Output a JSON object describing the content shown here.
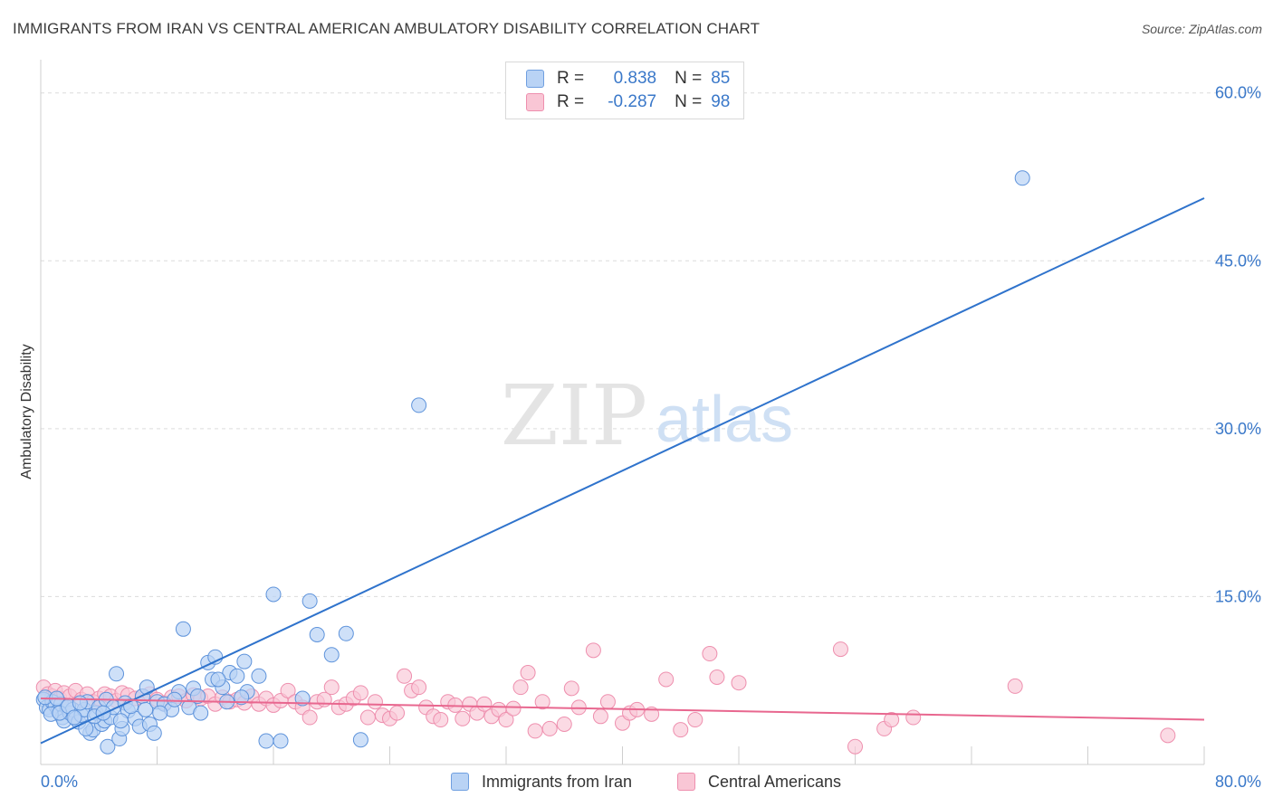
{
  "title": "IMMIGRANTS FROM IRAN VS CENTRAL AMERICAN AMBULATORY DISABILITY CORRELATION CHART",
  "source": "Source: ZipAtlas.com",
  "watermark": {
    "zip": "ZIP",
    "atlas": "atlas"
  },
  "legend_top": [
    {
      "r_label": "R =",
      "r_value": "0.838",
      "n_label": "N =",
      "n_value": "85"
    },
    {
      "r_label": "R =",
      "r_value": "-0.287",
      "n_label": "N =",
      "n_value": "98"
    }
  ],
  "colors": {
    "blue": "#3a78c9",
    "blue_fill": "#b9d3f5",
    "pink": "#e8678f",
    "pink_fill": "#f9c6d5",
    "grid": "#dcdcdc",
    "tick_text": "#3a78c9"
  },
  "chart_data": {
    "type": "scatter",
    "title": "IMMIGRANTS FROM IRAN VS CENTRAL AMERICAN AMBULATORY DISABILITY CORRELATION CHART",
    "xlabel": "",
    "ylabel": "Ambulatory Disability",
    "xlim": [
      0,
      80
    ],
    "ylim": [
      0,
      62
    ],
    "x_tick_labels": [
      "0.0%",
      "80.0%"
    ],
    "y_ticks": [
      15,
      30,
      45,
      60
    ],
    "y_tick_labels": [
      "15.0%",
      "30.0%",
      "45.0%",
      "60.0%"
    ],
    "grid": true,
    "legend_position": "bottom",
    "series": [
      {
        "name": "Immigrants from Iran",
        "color": "#3a78c9",
        "trend": [
          [
            0,
            1.9
          ],
          [
            80,
            50.6
          ]
        ],
        "points": [
          [
            0.2,
            5.8
          ],
          [
            0.4,
            5.1
          ],
          [
            0.6,
            4.9
          ],
          [
            0.8,
            5.6
          ],
          [
            1.0,
            5.3
          ],
          [
            1.2,
            4.8
          ],
          [
            1.4,
            5.4
          ],
          [
            1.5,
            4.2
          ],
          [
            1.6,
            3.9
          ],
          [
            1.8,
            5.1
          ],
          [
            2.0,
            4.6
          ],
          [
            2.2,
            4.9
          ],
          [
            2.4,
            4.1
          ],
          [
            2.6,
            3.8
          ],
          [
            2.8,
            4.4
          ],
          [
            3.0,
            4.9
          ],
          [
            3.2,
            5.6
          ],
          [
            3.4,
            2.8
          ],
          [
            3.6,
            3.1
          ],
          [
            3.8,
            4.6
          ],
          [
            4.0,
            5.1
          ],
          [
            4.2,
            3.6
          ],
          [
            4.4,
            3.9
          ],
          [
            4.5,
            5.8
          ],
          [
            4.6,
            1.6
          ],
          [
            4.8,
            4.2
          ],
          [
            5.0,
            5.1
          ],
          [
            5.2,
            8.1
          ],
          [
            5.4,
            2.3
          ],
          [
            5.6,
            3.2
          ],
          [
            5.8,
            5.5
          ],
          [
            6.0,
            4.8
          ],
          [
            6.5,
            4.1
          ],
          [
            6.8,
            3.4
          ],
          [
            7.0,
            6.1
          ],
          [
            7.2,
            4.9
          ],
          [
            7.5,
            3.6
          ],
          [
            7.8,
            2.8
          ],
          [
            8.0,
            5.6
          ],
          [
            8.5,
            5.4
          ],
          [
            9.0,
            4.9
          ],
          [
            9.5,
            6.5
          ],
          [
            9.8,
            12.1
          ],
          [
            10.2,
            5.1
          ],
          [
            10.5,
            6.8
          ],
          [
            11.0,
            4.6
          ],
          [
            11.5,
            9.1
          ],
          [
            11.8,
            7.6
          ],
          [
            12.0,
            9.6
          ],
          [
            12.5,
            6.9
          ],
          [
            12.8,
            5.6
          ],
          [
            13.0,
            8.2
          ],
          [
            13.5,
            7.9
          ],
          [
            14.0,
            9.2
          ],
          [
            14.2,
            6.5
          ],
          [
            15.0,
            7.9
          ],
          [
            15.5,
            2.1
          ],
          [
            16.0,
            15.2
          ],
          [
            16.5,
            2.1
          ],
          [
            18.0,
            5.9
          ],
          [
            18.5,
            14.6
          ],
          [
            19.0,
            11.6
          ],
          [
            20.0,
            9.8
          ],
          [
            21.0,
            11.7
          ],
          [
            22.0,
            2.2
          ],
          [
            26.0,
            32.1
          ],
          [
            67.5,
            52.4
          ],
          [
            0.3,
            6.0
          ],
          [
            0.7,
            4.5
          ],
          [
            1.1,
            5.9
          ],
          [
            1.3,
            4.6
          ],
          [
            1.9,
            5.2
          ],
          [
            2.3,
            4.2
          ],
          [
            2.7,
            5.5
          ],
          [
            3.1,
            3.2
          ],
          [
            3.7,
            4.3
          ],
          [
            4.3,
            4.6
          ],
          [
            5.5,
            3.9
          ],
          [
            6.2,
            5.2
          ],
          [
            7.3,
            6.9
          ],
          [
            8.2,
            4.6
          ],
          [
            9.2,
            5.8
          ],
          [
            10.8,
            6.1
          ],
          [
            12.2,
            7.6
          ],
          [
            13.8,
            6.0
          ]
        ]
      },
      {
        "name": "Central Americans",
        "color": "#e8678f",
        "trend": [
          [
            0,
            5.9
          ],
          [
            80,
            4.0
          ]
        ],
        "points": [
          [
            0.2,
            6.9
          ],
          [
            0.5,
            6.3
          ],
          [
            0.8,
            6.1
          ],
          [
            1.0,
            6.6
          ],
          [
            1.3,
            5.9
          ],
          [
            1.6,
            6.4
          ],
          [
            2.0,
            6.1
          ],
          [
            2.4,
            6.6
          ],
          [
            2.8,
            5.8
          ],
          [
            3.2,
            6.3
          ],
          [
            3.6,
            5.6
          ],
          [
            4.0,
            5.9
          ],
          [
            4.4,
            6.3
          ],
          [
            4.8,
            6.1
          ],
          [
            5.2,
            5.7
          ],
          [
            5.6,
            6.4
          ],
          [
            6.0,
            6.2
          ],
          [
            6.5,
            5.9
          ],
          [
            7.0,
            6.1
          ],
          [
            7.5,
            6.3
          ],
          [
            8.0,
            5.8
          ],
          [
            8.5,
            5.5
          ],
          [
            9.0,
            6.0
          ],
          [
            9.5,
            6.1
          ],
          [
            10.0,
            5.7
          ],
          [
            10.5,
            6.2
          ],
          [
            11.0,
            5.9
          ],
          [
            11.5,
            6.1
          ],
          [
            12.0,
            5.4
          ],
          [
            12.5,
            6.0
          ],
          [
            13.0,
            5.6
          ],
          [
            13.5,
            5.8
          ],
          [
            14.0,
            5.5
          ],
          [
            14.5,
            6.1
          ],
          [
            15.0,
            5.4
          ],
          [
            15.5,
            5.9
          ],
          [
            16.0,
            5.3
          ],
          [
            16.5,
            5.7
          ],
          [
            17.0,
            6.6
          ],
          [
            17.5,
            5.6
          ],
          [
            18.0,
            5.1
          ],
          [
            18.5,
            4.2
          ],
          [
            19.0,
            5.6
          ],
          [
            19.5,
            5.8
          ],
          [
            20.0,
            6.9
          ],
          [
            20.5,
            5.1
          ],
          [
            21.0,
            5.4
          ],
          [
            21.5,
            5.9
          ],
          [
            22.0,
            6.4
          ],
          [
            22.5,
            4.2
          ],
          [
            23.0,
            5.6
          ],
          [
            23.5,
            4.4
          ],
          [
            24.0,
            4.1
          ],
          [
            24.5,
            4.6
          ],
          [
            25.0,
            7.9
          ],
          [
            25.5,
            6.6
          ],
          [
            26.0,
            6.9
          ],
          [
            26.5,
            5.1
          ],
          [
            27.0,
            4.3
          ],
          [
            27.5,
            4.0
          ],
          [
            28.0,
            5.6
          ],
          [
            28.5,
            5.3
          ],
          [
            29.0,
            4.1
          ],
          [
            29.5,
            5.4
          ],
          [
            30.0,
            4.6
          ],
          [
            30.5,
            5.4
          ],
          [
            31.0,
            4.3
          ],
          [
            31.5,
            4.9
          ],
          [
            32.0,
            4.0
          ],
          [
            32.5,
            5.0
          ],
          [
            33.0,
            6.9
          ],
          [
            33.5,
            8.2
          ],
          [
            34.0,
            3.0
          ],
          [
            34.5,
            5.6
          ],
          [
            35.0,
            3.2
          ],
          [
            36.0,
            3.6
          ],
          [
            36.5,
            6.8
          ],
          [
            37.0,
            5.1
          ],
          [
            38.0,
            10.2
          ],
          [
            38.5,
            4.3
          ],
          [
            39.0,
            5.6
          ],
          [
            40.0,
            3.7
          ],
          [
            40.5,
            4.6
          ],
          [
            41.0,
            4.9
          ],
          [
            42.0,
            4.5
          ],
          [
            43.0,
            7.6
          ],
          [
            44.0,
            3.1
          ],
          [
            45.0,
            4.0
          ],
          [
            46.0,
            9.9
          ],
          [
            46.5,
            7.8
          ],
          [
            48.0,
            7.3
          ],
          [
            55.0,
            10.3
          ],
          [
            56.0,
            1.6
          ],
          [
            58.0,
            3.2
          ],
          [
            58.5,
            4.0
          ],
          [
            60.0,
            4.2
          ],
          [
            67.0,
            7.0
          ],
          [
            77.5,
            2.6
          ]
        ]
      }
    ]
  }
}
